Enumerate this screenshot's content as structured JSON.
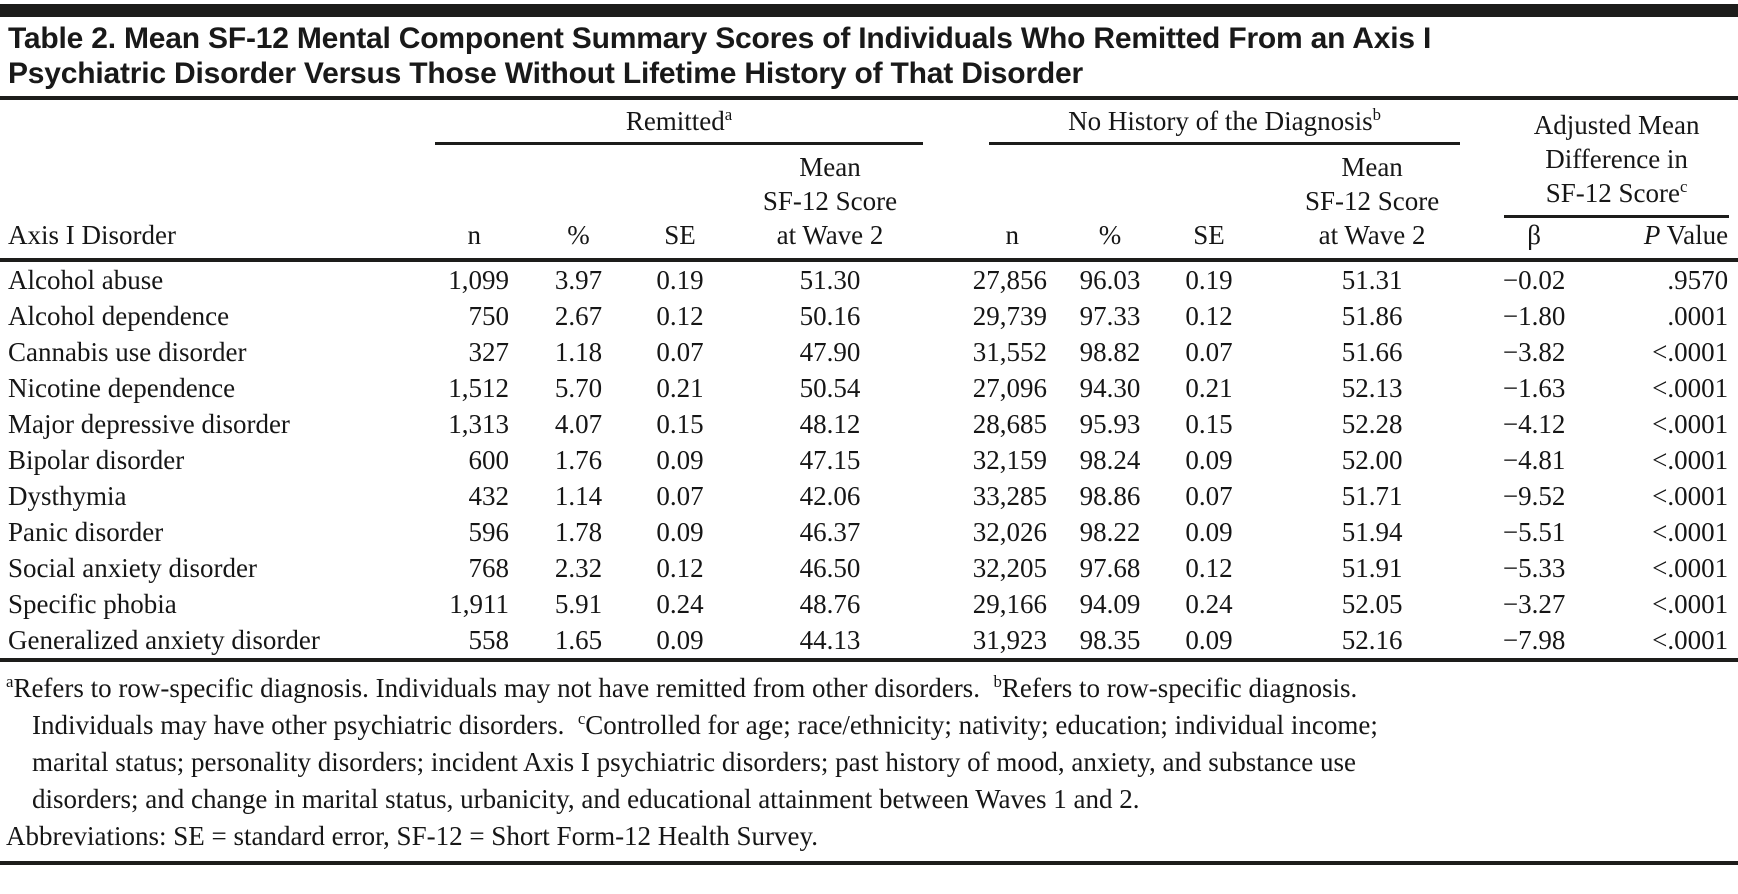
{
  "title": {
    "line1": "Table 2. Mean SF-12 Mental Component Summary Scores of Individuals Who Remitted From an Axis I",
    "line2": "Psychiatric Disorder Versus Those Without Lifetime History of That Disorder"
  },
  "header": {
    "row_label": "Axis I Disorder",
    "remitted_label": "Remitted",
    "remitted_sup": "a",
    "nohistory_label": "No History of the Diagnosis",
    "nohistory_sup": "b",
    "adjusted_line1": "Adjusted Mean",
    "adjusted_line2": "Difference in",
    "adjusted_line3": "SF-12 Score",
    "adjusted_sup": "c",
    "mean_line1": "Mean",
    "mean_line2": "SF-12 Score",
    "col_n": "n",
    "col_pct": "%",
    "col_se": "SE",
    "col_wave": "at Wave 2",
    "col_beta": "β",
    "col_p_italic": "P",
    "col_p_rest": "Value"
  },
  "rows": [
    [
      "Alcohol abuse",
      "1,099",
      "3.97",
      "0.19",
      "51.30",
      "27,856",
      "96.03",
      "0.19",
      "51.31",
      "−0.02",
      ".9570"
    ],
    [
      "Alcohol dependence",
      "750",
      "2.67",
      "0.12",
      "50.16",
      "29,739",
      "97.33",
      "0.12",
      "51.86",
      "−1.80",
      ".0001"
    ],
    [
      "Cannabis use disorder",
      "327",
      "1.18",
      "0.07",
      "47.90",
      "31,552",
      "98.82",
      "0.07",
      "51.66",
      "−3.82",
      "<.0001"
    ],
    [
      "Nicotine dependence",
      "1,512",
      "5.70",
      "0.21",
      "50.54",
      "27,096",
      "94.30",
      "0.21",
      "52.13",
      "−1.63",
      "<.0001"
    ],
    [
      "Major depressive disorder",
      "1,313",
      "4.07",
      "0.15",
      "48.12",
      "28,685",
      "95.93",
      "0.15",
      "52.28",
      "−4.12",
      "<.0001"
    ],
    [
      "Bipolar disorder",
      "600",
      "1.76",
      "0.09",
      "47.15",
      "32,159",
      "98.24",
      "0.09",
      "52.00",
      "−4.81",
      "<.0001"
    ],
    [
      "Dysthymia",
      "432",
      "1.14",
      "0.07",
      "42.06",
      "33,285",
      "98.86",
      "0.07",
      "51.71",
      "−9.52",
      "<.0001"
    ],
    [
      "Panic disorder",
      "596",
      "1.78",
      "0.09",
      "46.37",
      "32,026",
      "98.22",
      "0.09",
      "51.94",
      "−5.51",
      "<.0001"
    ],
    [
      "Social anxiety disorder",
      "768",
      "2.32",
      "0.12",
      "46.50",
      "32,205",
      "97.68",
      "0.12",
      "51.91",
      "−5.33",
      "<.0001"
    ],
    [
      "Specific phobia",
      "1,911",
      "5.91",
      "0.24",
      "48.76",
      "29,166",
      "94.09",
      "0.24",
      "52.05",
      "−3.27",
      "<.0001"
    ],
    [
      "Generalized anxiety disorder",
      "558",
      "1.65",
      "0.09",
      "44.13",
      "31,923",
      "98.35",
      "0.09",
      "52.16",
      "−7.98",
      "<.0001"
    ]
  ],
  "footnotes": {
    "lines": [
      [
        {
          "sup": "a"
        },
        {
          "text": "Refers to row-specific diagnosis. Individuals may not have remitted from other disorders.  "
        },
        {
          "sup": "b"
        },
        {
          "text": "Refers to row-specific diagnosis."
        }
      ],
      [
        {
          "text": "Individuals may have other psychiatric disorders.  "
        },
        {
          "sup": "c"
        },
        {
          "text": "Controlled for age; race/ethnicity; nativity; education; individual income;"
        }
      ],
      [
        {
          "text": "marital status; personality disorders; incident Axis I psychiatric disorders; past history of mood, anxiety, and substance use"
        }
      ],
      [
        {
          "text": "disorders; and change in marital status, urbanicity, and educational attainment between Waves 1 and 2."
        }
      ]
    ],
    "abbreviations": "Abbreviations: SE = standard error, SF-12 = Short Form-12 Health Survey."
  }
}
